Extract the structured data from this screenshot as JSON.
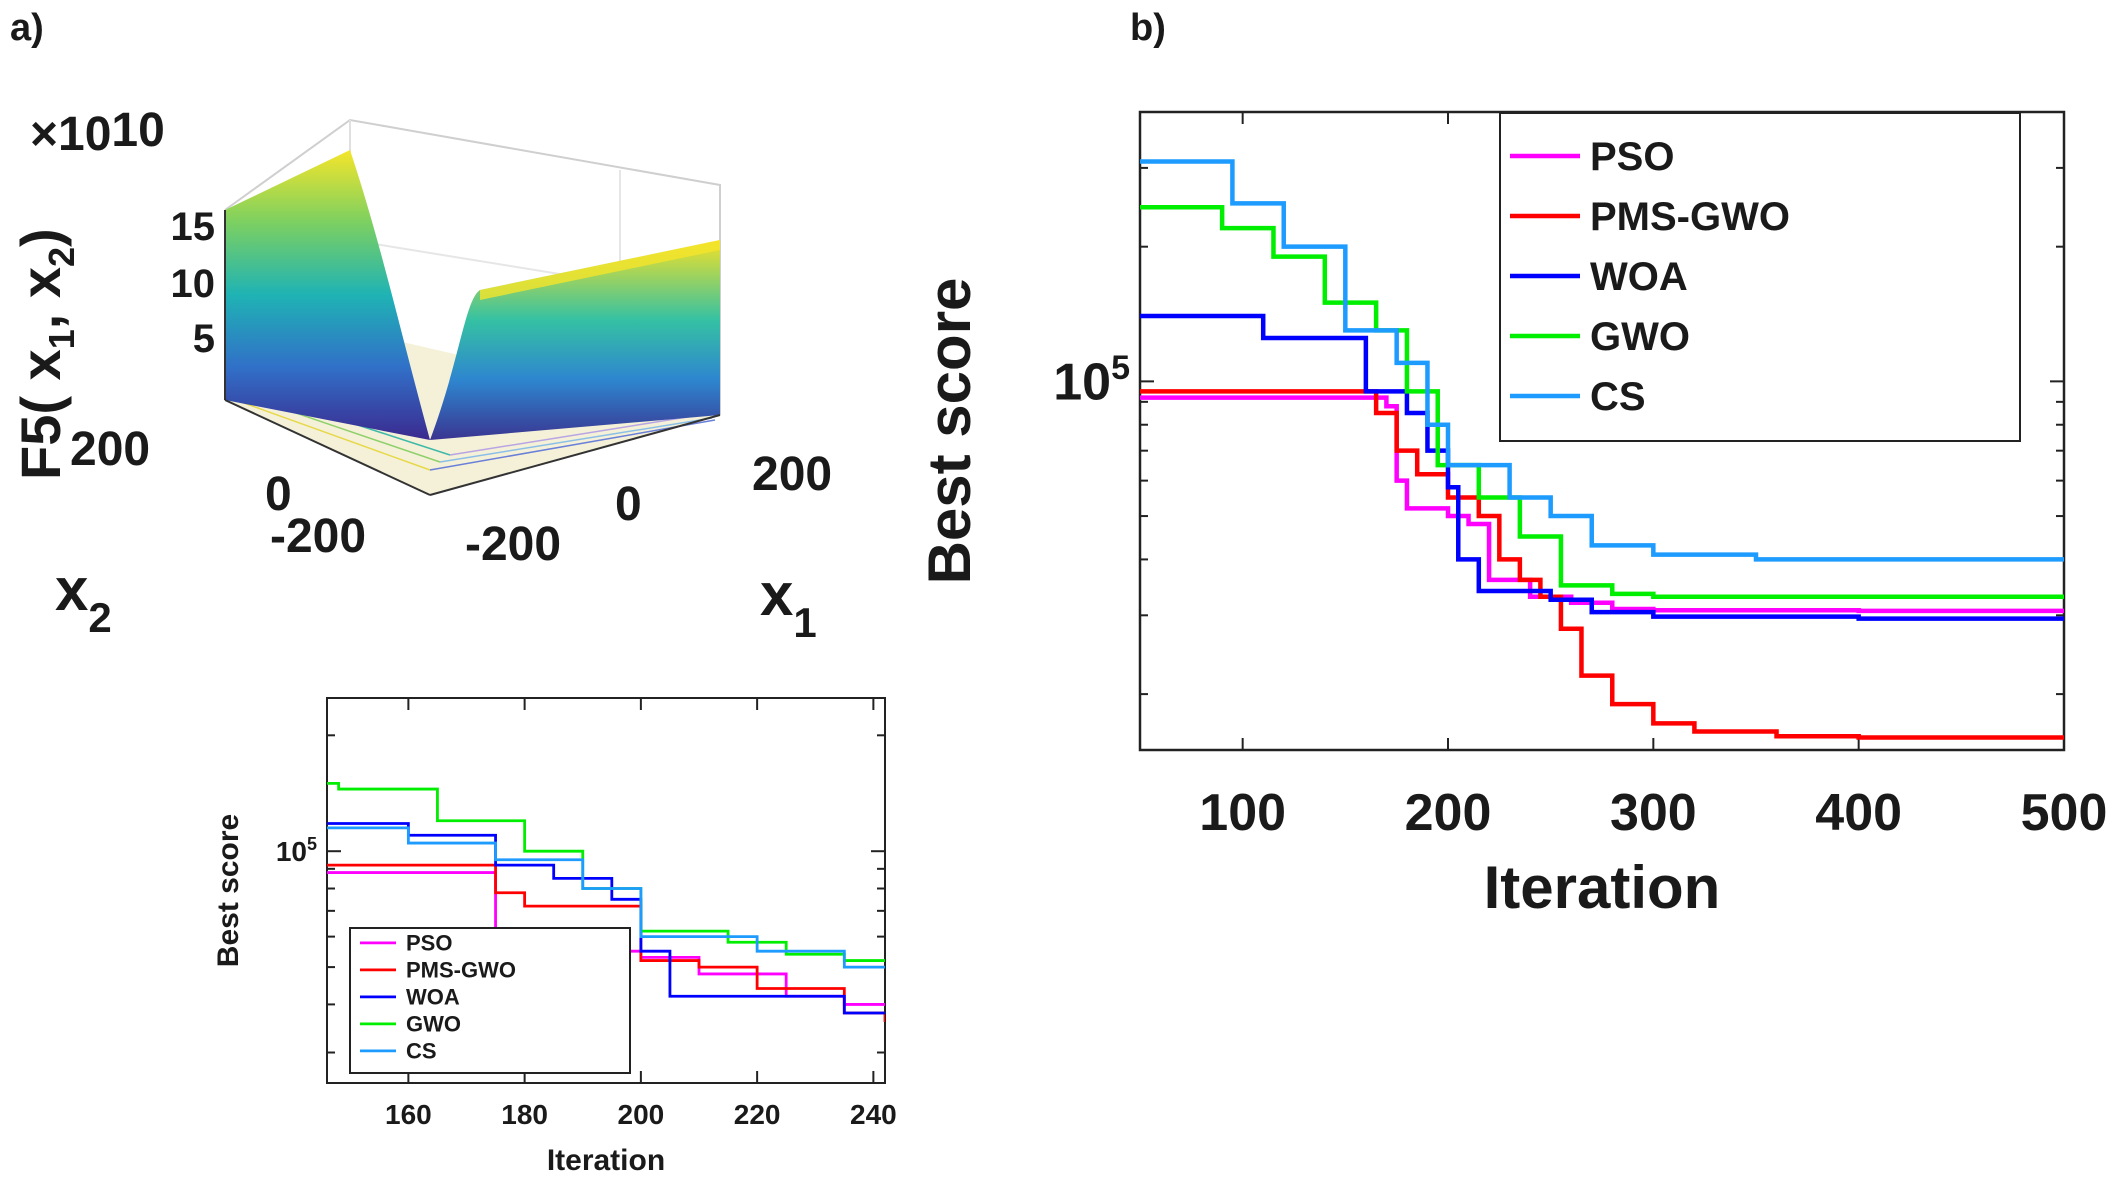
{
  "panel_labels": {
    "a": "a)",
    "b": "b)"
  },
  "surface": {
    "zlabel": "F5( x",
    "zlabel_sub1": "1",
    "zlabel_comma": ", x",
    "zlabel_sub2": "2",
    "zlabel_end": ")",
    "exponent": "×10",
    "exponent_power": "10",
    "ztick_labels": [
      "15",
      "10",
      "5"
    ],
    "x2_ticks": [
      "200",
      "0",
      "-200"
    ],
    "x1_ticks": [
      "-200",
      "0",
      "200"
    ],
    "x2_label": "x",
    "x2_sub": "2",
    "x1_label": "x",
    "x1_sub": "1"
  },
  "colors": {
    "PSO": "#ff00ff",
    "PMS-GWO": "#ff0000",
    "WOA": "#0000ff",
    "GWO": "#00ee00",
    "CS": "#1e9bff"
  },
  "chart_data": [
    {
      "type": "line",
      "yscale": "log",
      "xlabel": "Iteration",
      "ylabel": "Best score",
      "xlim": [
        50,
        500
      ],
      "ylim": [
        15000,
        400000
      ],
      "xticks": [
        "100",
        "200",
        "300",
        "400",
        "500"
      ],
      "ytick_label_base": "10",
      "ytick_label_power": "5",
      "legend_position": "top-right",
      "series": [
        {
          "name": "PSO",
          "x": [
            50,
            170,
            175,
            180,
            200,
            210,
            220,
            240,
            260,
            280,
            300,
            400,
            500
          ],
          "y": [
            92000,
            88000,
            60000,
            52000,
            50000,
            48000,
            36000,
            33000,
            32000,
            31000,
            30800,
            30700,
            30700
          ]
        },
        {
          "name": "PMS-GWO",
          "x": [
            50,
            160,
            165,
            175,
            185,
            200,
            215,
            225,
            235,
            245,
            255,
            265,
            280,
            300,
            320,
            360,
            400,
            500
          ],
          "y": [
            95000,
            95000,
            85000,
            70000,
            62000,
            55000,
            50000,
            40000,
            36000,
            33000,
            28000,
            22000,
            19000,
            17200,
            16500,
            16100,
            16000,
            16000
          ]
        },
        {
          "name": "WOA",
          "x": [
            50,
            110,
            160,
            180,
            190,
            200,
            205,
            215,
            230,
            250,
            270,
            300,
            400,
            500
          ],
          "y": [
            140000,
            125000,
            95000,
            85000,
            70000,
            58000,
            40000,
            34000,
            34000,
            32500,
            30500,
            29800,
            29500,
            29500
          ]
        },
        {
          "name": "GWO",
          "x": [
            50,
            90,
            115,
            140,
            165,
            180,
            195,
            215,
            235,
            255,
            280,
            300,
            400,
            500
          ],
          "y": [
            245000,
            220000,
            190000,
            150000,
            130000,
            95000,
            65000,
            55000,
            45000,
            35000,
            33500,
            33000,
            33000,
            33000
          ]
        },
        {
          "name": "CS",
          "x": [
            50,
            95,
            120,
            150,
            175,
            190,
            200,
            230,
            250,
            270,
            300,
            350,
            400,
            500
          ],
          "y": [
            310000,
            250000,
            200000,
            130000,
            110000,
            80000,
            65000,
            55000,
            50000,
            43000,
            41000,
            40000,
            40000,
            40000
          ]
        }
      ]
    },
    {
      "type": "line",
      "yscale": "log",
      "xlabel": "Iteration",
      "ylabel": "Best score",
      "xlim": [
        146,
        242
      ],
      "ylim": [
        25000,
        250000
      ],
      "xticks": [
        "160",
        "180",
        "200",
        "220",
        "240"
      ],
      "ytick_label_base": "10",
      "ytick_label_power": "5",
      "legend_position": "bottom-left",
      "series": [
        {
          "name": "PSO",
          "x": [
            146,
            170,
            175,
            180,
            200,
            210,
            225,
            235,
            242
          ],
          "y": [
            88000,
            88000,
            60000,
            55000,
            53000,
            48000,
            42000,
            40000,
            40000
          ]
        },
        {
          "name": "PMS-GWO",
          "x": [
            146,
            165,
            175,
            180,
            200,
            210,
            220,
            235,
            242
          ],
          "y": [
            92000,
            92000,
            78000,
            72000,
            52000,
            50000,
            44000,
            38000,
            36000
          ]
        },
        {
          "name": "WOA",
          "x": [
            146,
            160,
            175,
            185,
            195,
            200,
            205,
            220,
            235,
            242
          ],
          "y": [
            118000,
            110000,
            92000,
            85000,
            75000,
            55000,
            42000,
            42000,
            38000,
            38000
          ]
        },
        {
          "name": "GWO",
          "x": [
            146,
            148,
            165,
            180,
            190,
            200,
            215,
            225,
            235,
            242
          ],
          "y": [
            150000,
            145000,
            120000,
            100000,
            80000,
            62000,
            58000,
            54000,
            52000,
            52000
          ]
        },
        {
          "name": "CS",
          "x": [
            146,
            160,
            175,
            190,
            200,
            220,
            235,
            242
          ],
          "y": [
            115000,
            105000,
            95000,
            80000,
            60000,
            55000,
            50000,
            50000
          ]
        }
      ]
    }
  ]
}
